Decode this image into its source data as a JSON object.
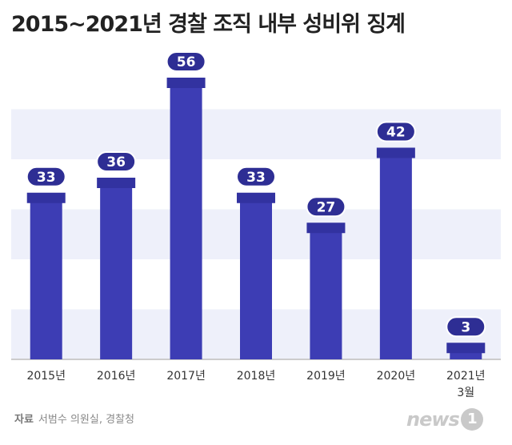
{
  "title": "2015~2021년 경찰 조직 내부 성비위 징계",
  "source": {
    "label": "자료",
    "text": "서범수 의원실, 경찰청"
  },
  "logo": {
    "text": "news",
    "badge": "1"
  },
  "colors": {
    "bar": "#3d3db4",
    "bar_cap": "#3232a0",
    "label_bg": "#2e2e94",
    "band": "#eef0fa",
    "baseline": "#cccccc"
  },
  "chart_data": {
    "type": "bar",
    "categories": [
      "2015년",
      "2016년",
      "2017년",
      "2018년",
      "2019년",
      "2020년",
      "2021년\n3월"
    ],
    "values": [
      33,
      36,
      56,
      33,
      27,
      42,
      3
    ],
    "title": "2015~2021년 경찰 조직 내부 성비위 징계",
    "xlabel": "",
    "ylabel": "",
    "ylim": [
      0,
      60
    ],
    "grid": true,
    "legend": "none"
  }
}
